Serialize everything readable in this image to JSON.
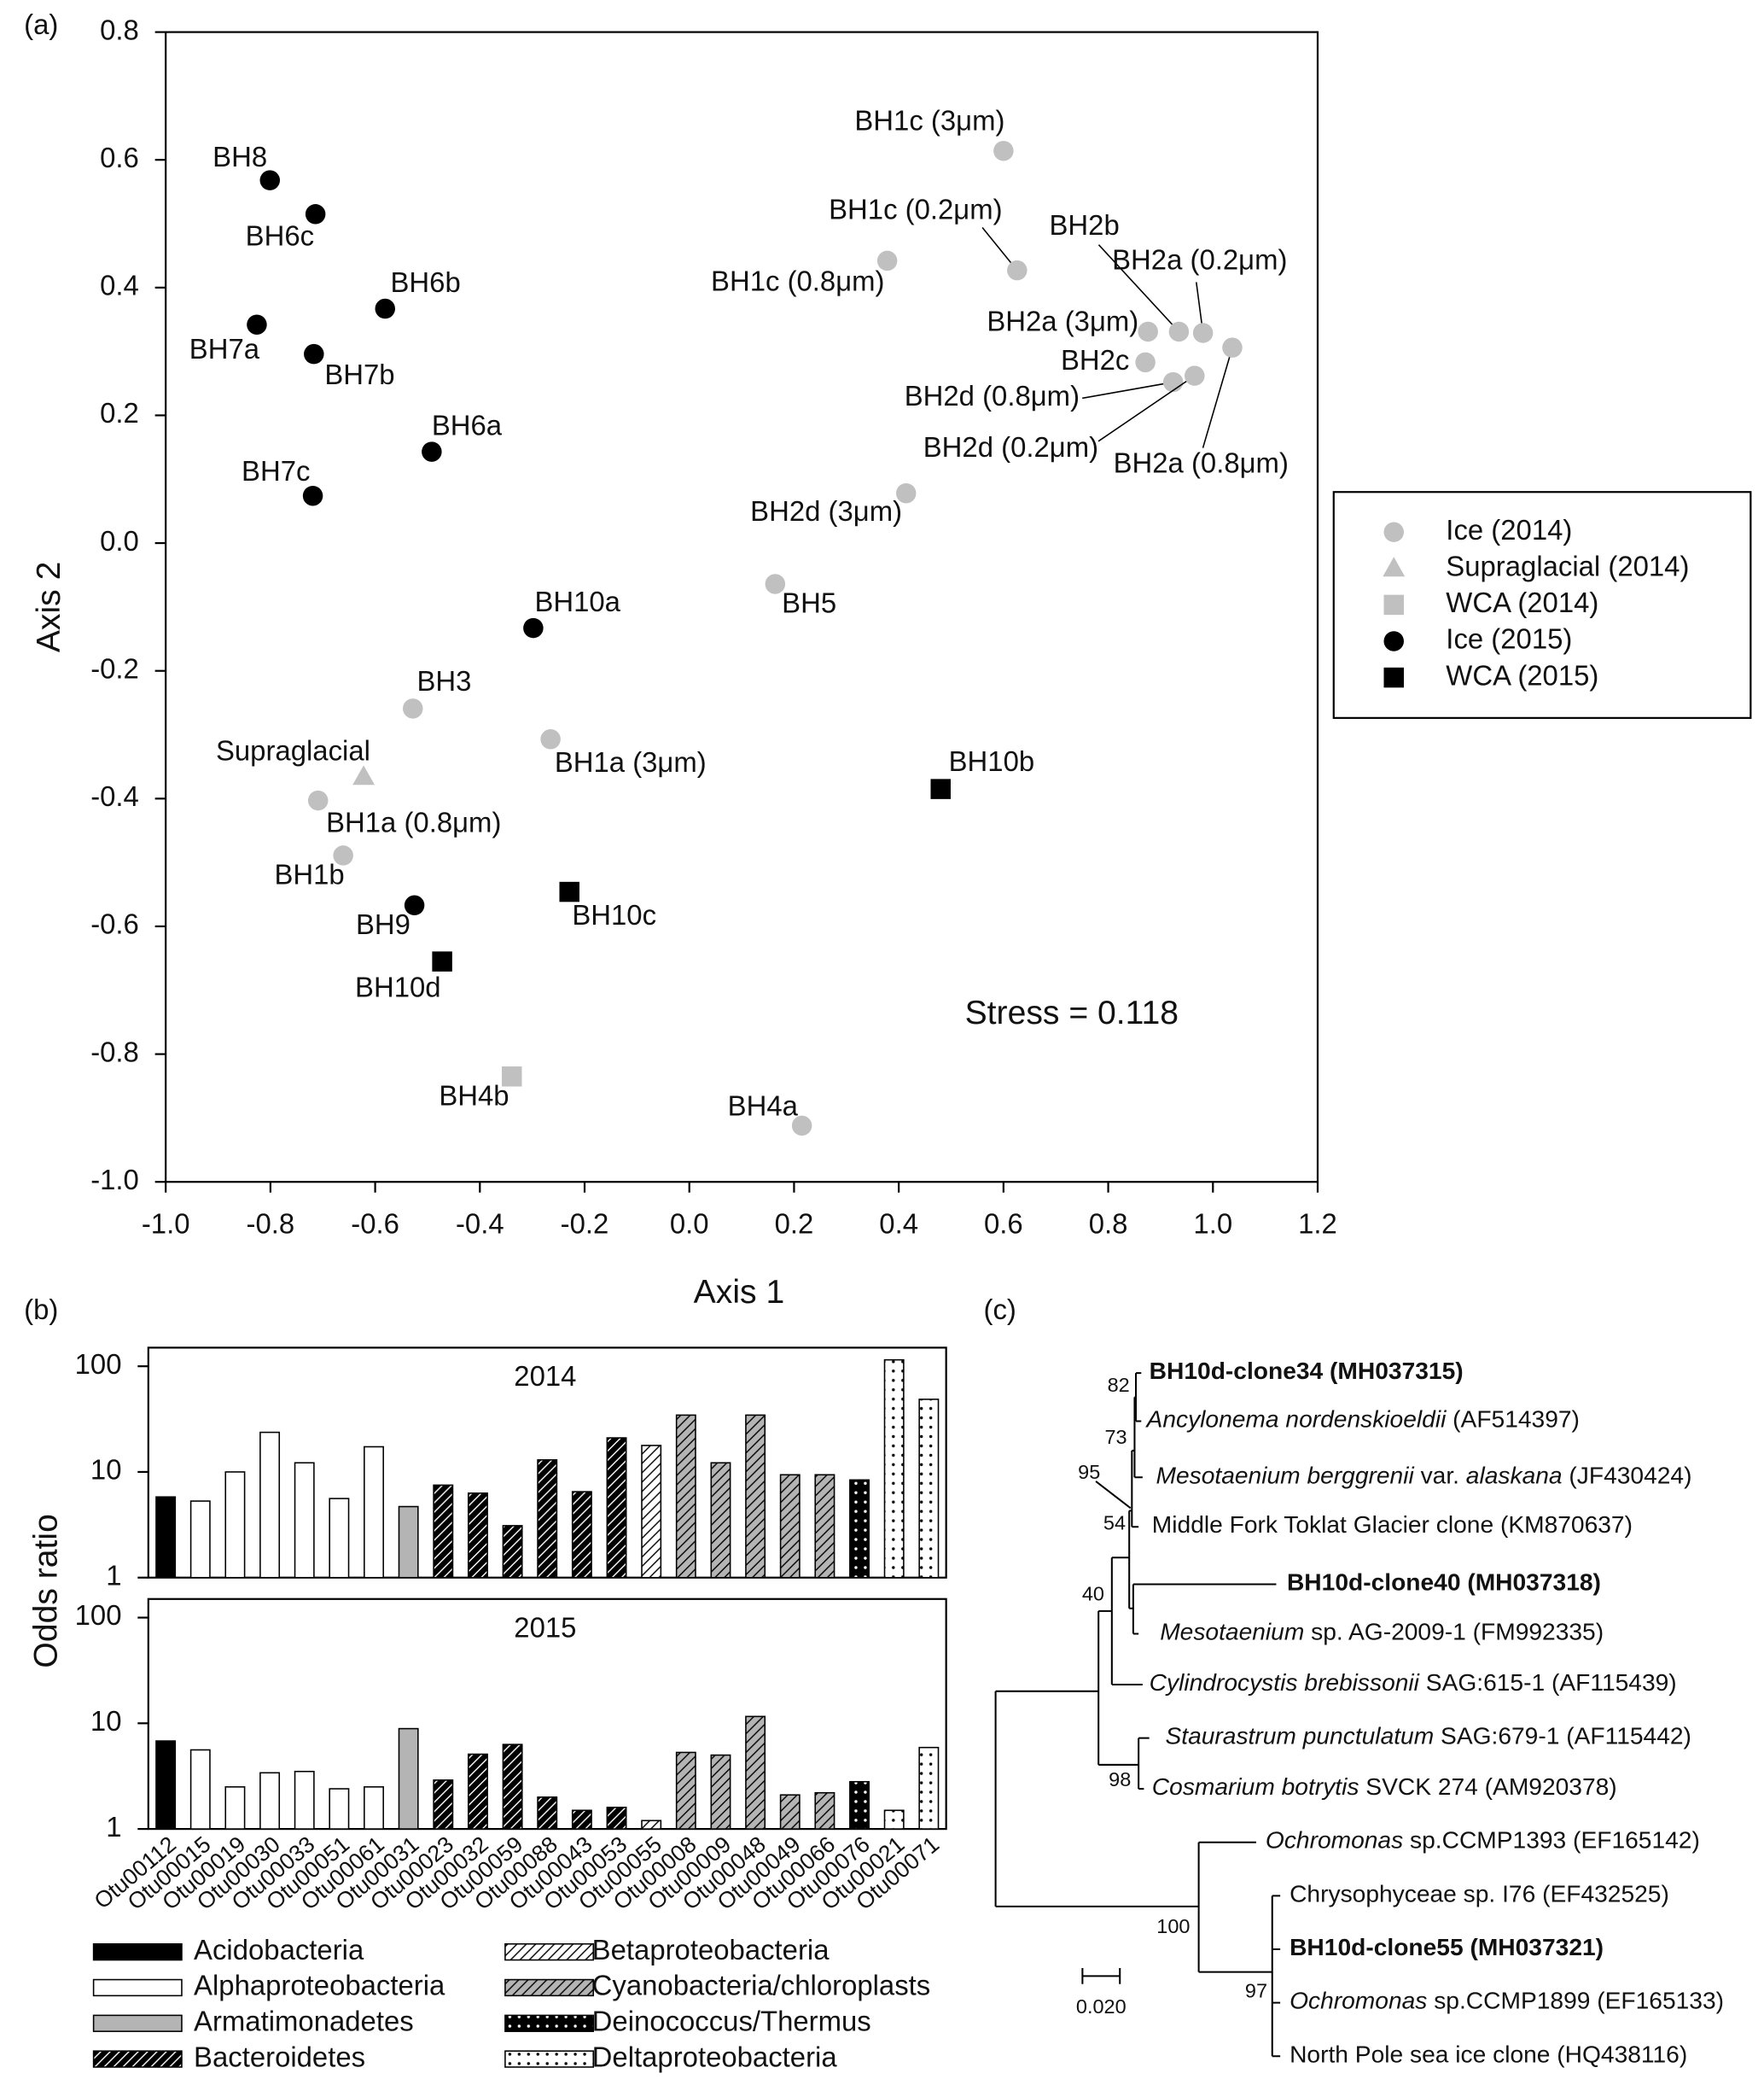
{
  "panel_labels": [
    "(a)",
    "(b)",
    "(c)"
  ],
  "chart_data": [
    {
      "type": "scatter",
      "xlabel": "Axis 1",
      "ylabel": "Axis 2",
      "xlim": [
        -1.0,
        1.2
      ],
      "ylim": [
        -1.0,
        0.8
      ],
      "xticks": [
        {
          "value": -1.0,
          "label": "-1.0"
        },
        -0.8,
        -0.6,
        -0.4,
        -0.2,
        {
          "value": 0,
          "label": "0.0"
        },
        0.2,
        0.4,
        0.6,
        0.8,
        {
          "value": 1,
          "label": "1.0"
        },
        1.2
      ],
      "yticks": [
        {
          "value": -1.0,
          "label": "-1.0"
        },
        -0.8,
        -0.6,
        -0.4,
        -0.2,
        {
          "value": 0,
          "label": "0.0"
        },
        0.2,
        0.4,
        0.6,
        0.8
      ],
      "annotation": "Stress = 0.118",
      "legend": "right",
      "grid": false,
      "series": [
        {
          "name": "Ice (2014)",
          "color": "#c0c0c0",
          "marker": "circle",
          "labels": [
            "BH1c (3μm)",
            "BH1c (0.2μm)",
            "BH1c (0.8μm)",
            "BH2a (3μm)",
            "BH2b",
            "BH2a (0.2μm)",
            "BH2c",
            "BH2d (0.8μm)",
            "BH2d (0.2μm)",
            "BH2a (0.8μm)",
            "BH2d (3μm)",
            "BH5",
            "BH3",
            "BH1a (3μm)",
            "BH1a (0.8μm)",
            "BH1b",
            "BH4a"
          ],
          "x": [
            0.6,
            0.626,
            0.378,
            0.876,
            0.935,
            0.981,
            0.871,
            0.924,
            0.965,
            1.037,
            0.414,
            0.164,
            -0.528,
            -0.265,
            -0.709,
            -0.661,
            0.215
          ],
          "y": [
            0.614,
            0.427,
            0.442,
            0.331,
            0.331,
            0.329,
            0.283,
            0.252,
            0.262,
            0.306,
            0.078,
            -0.064,
            -0.259,
            -0.307,
            -0.403,
            -0.489,
            -0.912
          ]
        },
        {
          "name": "Supraglacial (2014)",
          "color": "#c0c0c0",
          "marker": "triangle",
          "labels": [
            "Supraglacial"
          ],
          "x": [
            -0.622
          ],
          "y": [
            -0.366
          ]
        },
        {
          "name": "WCA (2014)",
          "color": "#c0c0c0",
          "marker": "square",
          "labels": [
            "BH4b"
          ],
          "x": [
            -0.339
          ],
          "y": [
            -0.835
          ]
        },
        {
          "name": "Ice (2015)",
          "color": "#000000",
          "marker": "circle",
          "labels": [
            "BH8",
            "BH6c",
            "BH6b",
            "BH7a",
            "BH7b",
            "BH6a",
            "BH7c",
            "BH10a",
            "BH9"
          ],
          "x": [
            -0.801,
            -0.714,
            -0.581,
            -0.826,
            -0.717,
            -0.492,
            -0.719,
            -0.298,
            -0.525
          ],
          "y": [
            0.568,
            0.515,
            0.367,
            0.342,
            0.296,
            0.143,
            0.074,
            -0.133,
            -0.567
          ]
        },
        {
          "name": "WCA (2015)",
          "color": "#000000",
          "marker": "square",
          "labels": [
            "BH10b",
            "BH10c",
            "BH10d"
          ],
          "x": [
            0.48,
            -0.229,
            -0.472
          ],
          "y": [
            -0.385,
            -0.546,
            -0.655
          ]
        }
      ]
    },
    {
      "type": "bar",
      "ylabel": "Odds ratio",
      "log_scale": true,
      "ylim": [
        1,
        150
      ],
      "yticks": [
        1,
        10,
        100
      ],
      "panels": [
        "2014",
        "2015"
      ],
      "categories": [
        "Otu00112",
        "Otu00015",
        "Otu00019",
        "Otu00030",
        "Otu00033",
        "Otu00051",
        "Otu00061",
        "Otu00031",
        "Otu00023",
        "Otu00032",
        "Otu00059",
        "Otu00088",
        "Otu00043",
        "Otu00053",
        "Otu00055",
        "Otu00008",
        "Otu00009",
        "Otu00048",
        "Otu00049",
        "Otu00066",
        "Otu00076",
        "Otu00021",
        "Otu00071"
      ],
      "series": [
        {
          "name": "Acidobacteria",
          "color": "#000000",
          "pattern": "solid",
          "values": [
            [
              5.8,
              null,
              null,
              null,
              null,
              null,
              null,
              null,
              null,
              null,
              null,
              null,
              null,
              null,
              null,
              null,
              null,
              null,
              null,
              null,
              null,
              null,
              null
            ],
            [
              6.8,
              null,
              null,
              null,
              null,
              null,
              null,
              null,
              null,
              null,
              null,
              null,
              null,
              null,
              null,
              null,
              null,
              null,
              null,
              null,
              null,
              null,
              null
            ]
          ]
        },
        {
          "name": "Alphaproteobacteria",
          "color": "#ffffff",
          "pattern": "solid",
          "values": [
            [
              null,
              5.3,
              10,
              23.7,
              12.2,
              5.6,
              17.3,
              null,
              null,
              null,
              null,
              null,
              null,
              null,
              null,
              null,
              null,
              null,
              null,
              null,
              null,
              null,
              null
            ],
            [
              null,
              5.6,
              2.5,
              3.4,
              3.5,
              2.4,
              2.5,
              null,
              null,
              null,
              null,
              null,
              null,
              null,
              null,
              null,
              null,
              null,
              null,
              null,
              null,
              null,
              null
            ]
          ]
        },
        {
          "name": "Armatimonadetes",
          "color": "#b4b4b4",
          "pattern": "solid",
          "values": [
            [
              null,
              null,
              null,
              null,
              null,
              null,
              null,
              4.7,
              null,
              null,
              null,
              null,
              null,
              null,
              null,
              null,
              null,
              null,
              null,
              null,
              null,
              null,
              null
            ],
            [
              null,
              null,
              null,
              null,
              null,
              null,
              null,
              8.9,
              null,
              null,
              null,
              null,
              null,
              null,
              null,
              null,
              null,
              null,
              null,
              null,
              null,
              null,
              null
            ]
          ]
        },
        {
          "name": "Bacteroidetes",
          "color": "#000000",
          "pattern": "hatch",
          "values": [
            [
              null,
              null,
              null,
              null,
              null,
              null,
              null,
              null,
              7.5,
              6.3,
              3.1,
              13,
              6.5,
              21,
              null,
              null,
              null,
              null,
              null,
              null,
              null,
              null,
              null
            ],
            [
              null,
              null,
              null,
              null,
              null,
              null,
              null,
              null,
              2.9,
              5.1,
              6.3,
              2.0,
              1.5,
              1.6,
              null,
              null,
              null,
              null,
              null,
              null,
              null,
              null,
              null
            ]
          ]
        },
        {
          "name": "Betaproteobacteria",
          "color": "#ffffff",
          "pattern": "hatch",
          "values": [
            [
              null,
              null,
              null,
              null,
              null,
              null,
              null,
              null,
              null,
              null,
              null,
              null,
              null,
              null,
              17.8,
              null,
              null,
              null,
              null,
              null,
              null,
              null,
              null
            ],
            [
              null,
              null,
              null,
              null,
              null,
              null,
              null,
              null,
              null,
              null,
              null,
              null,
              null,
              null,
              1.2,
              null,
              null,
              null,
              null,
              null,
              null,
              null,
              null
            ]
          ]
        },
        {
          "name": "Cyanobacteria/chloroplasts",
          "color": "#b4b4b4",
          "pattern": "hatch",
          "values": [
            [
              null,
              null,
              null,
              null,
              null,
              null,
              null,
              null,
              null,
              null,
              null,
              null,
              null,
              null,
              null,
              34.5,
              12.2,
              34.5,
              9.4,
              9.4,
              null,
              null,
              null
            ],
            [
              null,
              null,
              null,
              null,
              null,
              null,
              null,
              null,
              null,
              null,
              null,
              null,
              null,
              null,
              null,
              5.3,
              5.0,
              11.6,
              2.1,
              2.2,
              null,
              null,
              null
            ]
          ]
        },
        {
          "name": "Deinococcus/Thermus",
          "color": "#000000",
          "pattern": "dots",
          "values": [
            [
              null,
              null,
              null,
              null,
              null,
              null,
              null,
              null,
              null,
              null,
              null,
              null,
              null,
              null,
              null,
              null,
              null,
              null,
              null,
              null,
              8.4,
              null,
              null
            ],
            [
              null,
              null,
              null,
              null,
              null,
              null,
              null,
              null,
              null,
              null,
              null,
              null,
              null,
              null,
              null,
              null,
              null,
              null,
              null,
              null,
              2.8,
              null,
              null
            ]
          ]
        },
        {
          "name": "Deltaproteobacteria",
          "color": "#ffffff",
          "pattern": "dots",
          "values": [
            [
              null,
              null,
              null,
              null,
              null,
              null,
              null,
              null,
              null,
              null,
              null,
              null,
              null,
              null,
              null,
              null,
              null,
              null,
              null,
              null,
              null,
              115,
              48.7
            ],
            [
              null,
              null,
              null,
              null,
              null,
              null,
              null,
              null,
              null,
              null,
              null,
              null,
              null,
              null,
              null,
              null,
              null,
              null,
              null,
              null,
              null,
              1.5,
              5.9
            ]
          ]
        }
      ]
    }
  ],
  "tree": {
    "leaves": [
      {
        "bold": true,
        "parts": [
          {
            "text": "BH10d-clone34 (MH037315)"
          }
        ]
      },
      {
        "parts": [
          {
            "text": "Ancylonema nordenskioeldii",
            "italic": true
          },
          {
            "text": " (AF514397)"
          }
        ]
      },
      {
        "parts": [
          {
            "text": "Mesotaenium berggrenii",
            "italic": true
          },
          {
            "text": " var. "
          },
          {
            "text": "alaskana",
            "italic": true
          },
          {
            "text": " (JF430424)"
          }
        ]
      },
      {
        "parts": [
          {
            "text": "Middle Fork Toklat Glacier clone (KM870637)"
          }
        ]
      },
      {
        "bold": true,
        "parts": [
          {
            "text": "BH10d-clone40 (MH037318)"
          }
        ]
      },
      {
        "parts": [
          {
            "text": "Mesotaenium",
            "italic": true
          },
          {
            "text": " sp. AG-2009-1 (FM992335)"
          }
        ]
      },
      {
        "parts": [
          {
            "text": "Cylindrocystis brebissonii",
            "italic": true
          },
          {
            "text": " SAG:615-1 (AF115439)"
          }
        ]
      },
      {
        "parts": [
          {
            "text": "Staurastrum punctulatum",
            "italic": true
          },
          {
            "text": " SAG:679-1 (AF115442)"
          }
        ]
      },
      {
        "parts": [
          {
            "text": "Cosmarium botrytis",
            "italic": true
          },
          {
            "text": " SVCK 274 (AM920378)"
          }
        ]
      },
      {
        "parts": [
          {
            "text": "Ochromonas",
            "italic": true
          },
          {
            "text": " sp.CCMP1393 (EF165142)"
          }
        ]
      },
      {
        "parts": [
          {
            "text": "Chrysophyceae sp. I76 (EF432525)"
          }
        ]
      },
      {
        "bold": true,
        "parts": [
          {
            "text": "BH10d-clone55 (MH037321)"
          }
        ]
      },
      {
        "parts": [
          {
            "text": "Ochromonas",
            "italic": true
          },
          {
            "text": " sp.CCMP1899 (EF165133)"
          }
        ]
      },
      {
        "parts": [
          {
            "text": "North Pole sea ice clone (HQ438116)"
          }
        ]
      }
    ],
    "support": [
      82,
      73,
      95,
      54,
      40,
      98,
      100,
      97
    ],
    "scale_label": "0.020"
  }
}
